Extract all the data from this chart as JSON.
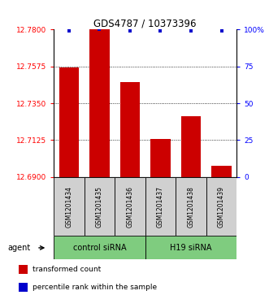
{
  "title": "GDS4787 / 10373396",
  "samples": [
    "GSM1201434",
    "GSM1201435",
    "GSM1201436",
    "GSM1201437",
    "GSM1201438",
    "GSM1201439"
  ],
  "bar_values": [
    12.757,
    12.78,
    12.748,
    12.713,
    12.727,
    12.697
  ],
  "percentile_values": [
    99,
    100,
    99,
    99,
    99,
    99
  ],
  "ylim_left": [
    12.69,
    12.78
  ],
  "ylim_right": [
    0,
    100
  ],
  "yticks_left": [
    12.69,
    12.7125,
    12.735,
    12.7575,
    12.78
  ],
  "yticks_right": [
    0,
    25,
    50,
    75,
    100
  ],
  "grid_lines": [
    12.7125,
    12.735,
    12.7575
  ],
  "bar_color": "#cc0000",
  "dot_color": "#0000cc",
  "group1_label": "control siRNA",
  "group2_label": "H19 siRNA",
  "group_bg_color": "#7fcc7f",
  "sample_bg_color": "#d0d0d0",
  "agent_label": "agent",
  "legend_bar_label": "transformed count",
  "legend_dot_label": "percentile rank within the sample",
  "bar_width": 0.65,
  "base_value": 12.69,
  "bg_color": "#ffffff"
}
